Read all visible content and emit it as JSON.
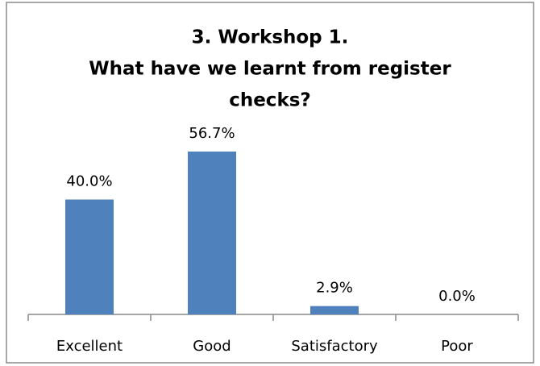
{
  "chart_data": {
    "type": "bar",
    "title": [
      "3. Workshop 1.",
      "What have we learnt from register",
      "checks?"
    ],
    "categories": [
      "Excellent",
      "Good",
      "Satisfactory",
      "Poor"
    ],
    "values": [
      40.0,
      56.7,
      2.9,
      0.0
    ],
    "value_labels": [
      "40.0%",
      "56.7%",
      "2.9%",
      "0.0%"
    ],
    "color": "#4f81bd"
  }
}
